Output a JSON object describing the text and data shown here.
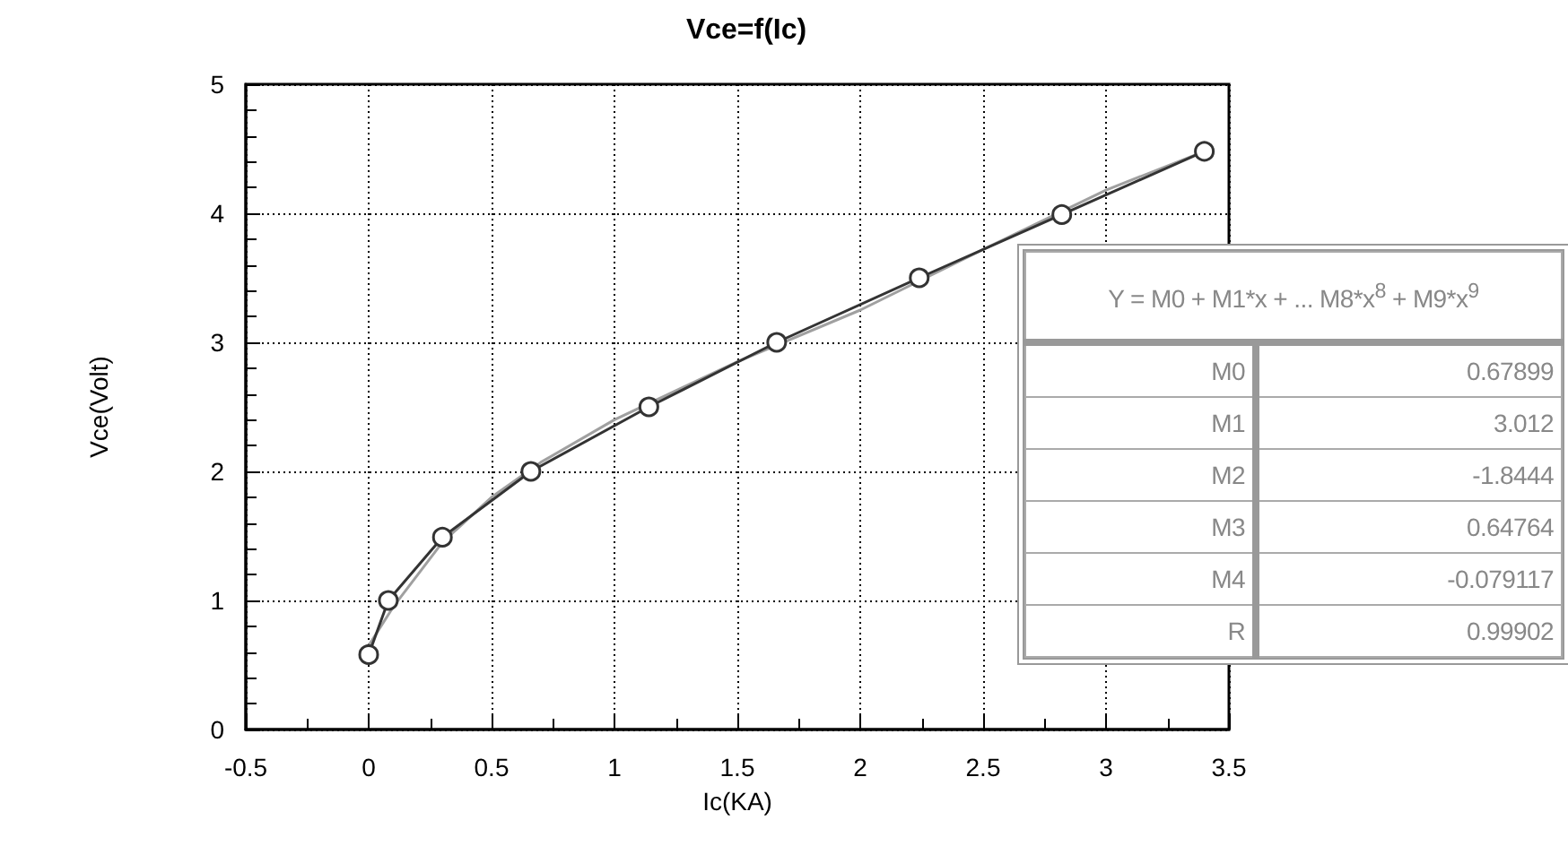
{
  "chart_data": {
    "type": "line",
    "title": "Vce=f(Ic)",
    "xlabel": "Ic(KA)",
    "ylabel": "Vce(Volt)",
    "xlim": [
      -0.5,
      3.5
    ],
    "xticks": [
      -0.5,
      0,
      0.5,
      1,
      1.5,
      2,
      2.5,
      3,
      3.5
    ],
    "ylim": [
      0,
      5
    ],
    "yticks": [
      0,
      1,
      2,
      3,
      4,
      5
    ],
    "grid": true,
    "marker": "circle",
    "series": [
      {
        "color": "#333333",
        "x": [
          0,
          0.08,
          0.3,
          0.66,
          1.14,
          1.66,
          2.24,
          2.82,
          3.4
        ],
        "values": [
          0.58,
          1.0,
          1.49,
          2.0,
          2.5,
          3.0,
          3.5,
          3.99,
          4.48
        ]
      },
      {
        "color": "#a0a0a0",
        "marker": "none",
        "x": [
          0,
          0.1,
          0.3,
          0.5,
          0.7,
          1.0,
          1.5,
          2.0,
          2.5,
          3.0,
          3.4
        ],
        "values": [
          0.65,
          0.95,
          1.45,
          1.8,
          2.07,
          2.4,
          2.85,
          3.25,
          3.72,
          4.18,
          4.48
        ]
      }
    ],
    "annotations": [
      "Y = M0 + M1*x + ... M8*x$^{8}$ + M9*x$^{9}$",
      "M0",
      "0.67899",
      "M1",
      "3.012",
      "M2",
      "-1.8444",
      "M3",
      "0.64764",
      "M4",
      "-0.079117",
      "R",
      "0.99902"
    ]
  }
}
